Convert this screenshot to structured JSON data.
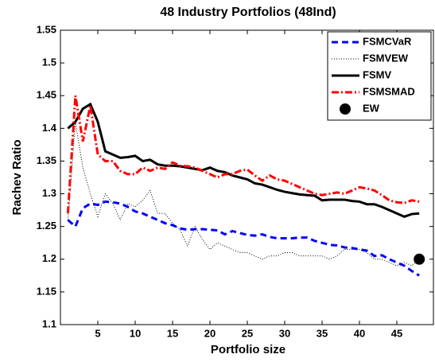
{
  "chart_data": {
    "type": "line",
    "title": "48 Industry Portfolios (48Ind)",
    "x_label": "Portfolio size",
    "y_label": "Rachev Ratio",
    "x": [
      1,
      2,
      3,
      4,
      5,
      6,
      7,
      8,
      9,
      10,
      11,
      12,
      13,
      14,
      15,
      16,
      17,
      18,
      19,
      20,
      21,
      22,
      23,
      24,
      25,
      26,
      27,
      28,
      29,
      30,
      31,
      32,
      33,
      34,
      35,
      36,
      37,
      38,
      39,
      40,
      41,
      42,
      43,
      44,
      45,
      46,
      47,
      48
    ],
    "xlim": [
      0,
      50
    ],
    "xticks": [
      5,
      10,
      15,
      20,
      25,
      30,
      35,
      40,
      45
    ],
    "ylim": [
      1.1,
      1.55
    ],
    "yticks": [
      1.1,
      1.15,
      1.2,
      1.25,
      1.3,
      1.35,
      1.4,
      1.45,
      1.5,
      1.55
    ],
    "legend": "upper right",
    "series": [
      {
        "name": "FSMCVaR",
        "color": "#0000ff",
        "style": "dashed",
        "values": [
          1.26,
          1.25,
          1.278,
          1.285,
          1.283,
          1.288,
          1.287,
          1.285,
          1.28,
          1.273,
          1.27,
          1.265,
          1.26,
          1.255,
          1.252,
          1.247,
          1.245,
          1.246,
          1.246,
          1.245,
          1.244,
          1.238,
          1.243,
          1.24,
          1.237,
          1.236,
          1.238,
          1.234,
          1.232,
          1.232,
          1.232,
          1.233,
          1.233,
          1.228,
          1.225,
          1.222,
          1.221,
          1.218,
          1.217,
          1.215,
          1.213,
          1.205,
          1.206,
          1.2,
          1.195,
          1.19,
          1.182,
          1.175
        ]
      },
      {
        "name": "FSMVEW",
        "color": "#000000",
        "style": "dotted",
        "values": [
          1.26,
          1.41,
          1.34,
          1.3,
          1.265,
          1.3,
          1.285,
          1.26,
          1.285,
          1.28,
          1.29,
          1.305,
          1.27,
          1.27,
          1.255,
          1.245,
          1.22,
          1.25,
          1.23,
          1.215,
          1.225,
          1.22,
          1.215,
          1.21,
          1.21,
          1.205,
          1.2,
          1.205,
          1.205,
          1.21,
          1.21,
          1.205,
          1.205,
          1.205,
          1.205,
          1.2,
          1.205,
          1.215,
          1.215,
          1.215,
          1.21,
          1.2,
          1.2,
          1.195,
          1.19,
          1.195,
          1.19,
          1.2
        ]
      },
      {
        "name": "FSMV",
        "color": "#000000",
        "style": "solid",
        "values": [
          1.4,
          1.41,
          1.43,
          1.437,
          1.41,
          1.365,
          1.36,
          1.355,
          1.356,
          1.358,
          1.35,
          1.352,
          1.345,
          1.343,
          1.343,
          1.342,
          1.34,
          1.338,
          1.336,
          1.34,
          1.335,
          1.333,
          1.328,
          1.325,
          1.322,
          1.316,
          1.314,
          1.31,
          1.306,
          1.303,
          1.301,
          1.299,
          1.298,
          1.297,
          1.29,
          1.291,
          1.291,
          1.291,
          1.289,
          1.288,
          1.284,
          1.284,
          1.28,
          1.275,
          1.27,
          1.265,
          1.269,
          1.27
        ]
      },
      {
        "name": "FSMSMAD",
        "color": "#ff0000",
        "style": "dashdot",
        "values": [
          1.27,
          1.45,
          1.38,
          1.435,
          1.36,
          1.35,
          1.35,
          1.335,
          1.33,
          1.33,
          1.34,
          1.335,
          1.34,
          1.338,
          1.348,
          1.343,
          1.342,
          1.34,
          1.335,
          1.33,
          1.325,
          1.33,
          1.33,
          1.335,
          1.337,
          1.328,
          1.32,
          1.328,
          1.322,
          1.32,
          1.315,
          1.31,
          1.305,
          1.3,
          1.298,
          1.3,
          1.302,
          1.3,
          1.305,
          1.31,
          1.308,
          1.305,
          1.298,
          1.29,
          1.287,
          1.286,
          1.29,
          1.288
        ]
      },
      {
        "name": "EW",
        "color": "#000000",
        "style": "marker",
        "x": [
          48
        ],
        "values": [
          1.2
        ]
      }
    ]
  }
}
